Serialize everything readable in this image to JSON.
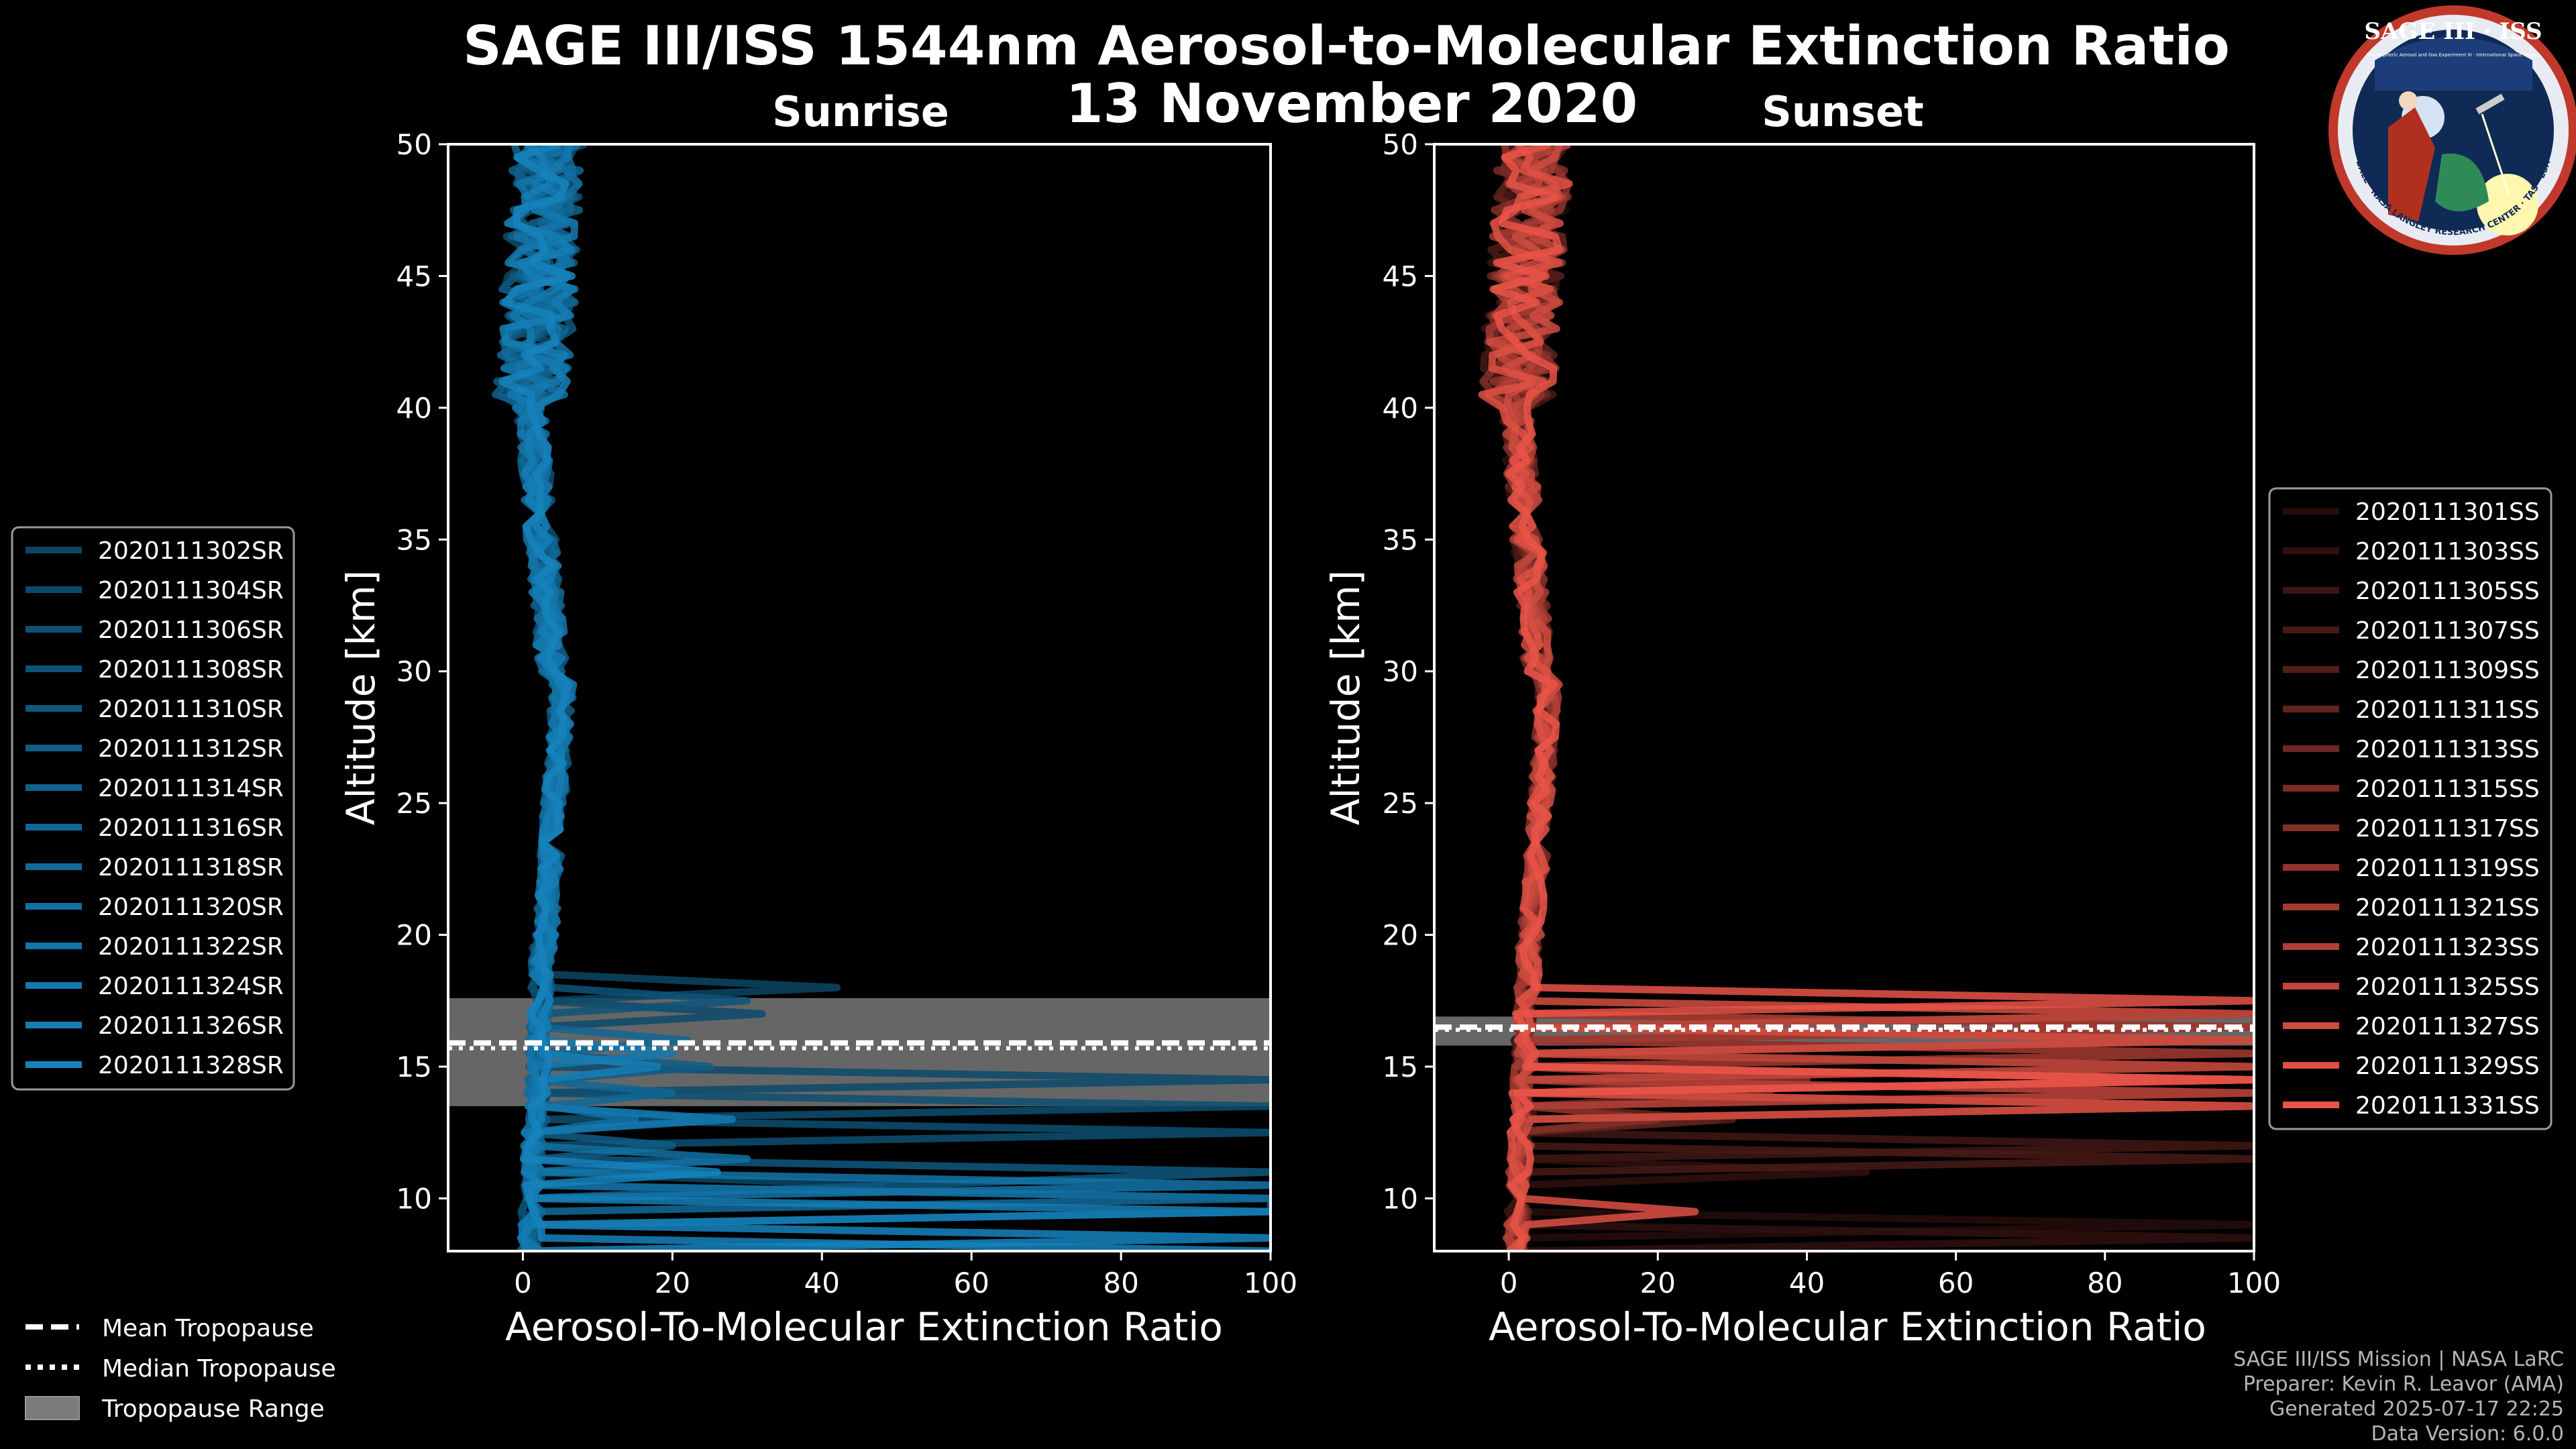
{
  "title_line1": "SAGE III/ISS 1544nm Aerosol-to-Molecular Extinction Ratio",
  "title_line2": "13 November 2020",
  "logo": {
    "top_text": "SAGE III · ISS",
    "sub_text": "Stratospheric Aerosol and Gas Experiment III · International Space Station",
    "ring_text": "BALL · NASA LANGLEY RESEARCH CENTER · TAS · ESA"
  },
  "chart_data": [
    {
      "type": "line",
      "title": "Sunrise",
      "xlabel": "Aerosol-To-Molecular Extinction Ratio",
      "ylabel": "Altitude [km]",
      "xlim": [
        -10,
        100
      ],
      "ylim": [
        8,
        50
      ],
      "xticks": [
        0,
        20,
        40,
        60,
        80,
        100
      ],
      "yticks": [
        10,
        15,
        20,
        25,
        30,
        35,
        40,
        45,
        50
      ],
      "base_color": "#1a9be0",
      "tropopause": {
        "mean_km": 15.9,
        "median_km": 15.9,
        "range_km": [
          13.5,
          17.6
        ]
      },
      "series": [
        {
          "name": "2020111302SR",
          "dark": 0.55,
          "spikes": [
            [
              18.2,
              42
            ],
            [
              10.7,
              48
            ],
            [
              9.6,
              2
            ]
          ]
        },
        {
          "name": "2020111304SR",
          "dark": 0.52,
          "spikes": [
            [
              16.8,
              32
            ],
            [
              14.3,
              100
            ]
          ]
        },
        {
          "name": "2020111306SR",
          "dark": 0.49,
          "spikes": [
            [
              13.6,
              100
            ],
            [
              12.4,
              100
            ]
          ]
        },
        {
          "name": "2020111308SR",
          "dark": 0.46,
          "spikes": [
            [
              17.4,
              30
            ],
            [
              13.1,
              24
            ]
          ]
        },
        {
          "name": "2020111310SR",
          "dark": 0.43,
          "spikes": [
            [
              11.0,
              100
            ],
            [
              10.4,
              50
            ]
          ]
        },
        {
          "name": "2020111312SR",
          "dark": 0.4,
          "spikes": [
            [
              15.2,
              25
            ],
            [
              12.0,
              20
            ]
          ]
        },
        {
          "name": "2020111314SR",
          "dark": 0.37,
          "spikes": [
            [
              10.2,
              100
            ],
            [
              9.3,
              100
            ]
          ]
        },
        {
          "name": "2020111316SR",
          "dark": 0.34,
          "spikes": [
            [
              16.1,
              22
            ],
            [
              14.0,
              20
            ]
          ]
        },
        {
          "name": "2020111318SR",
          "dark": 0.31,
          "spikes": [
            [
              9.9,
              100
            ],
            [
              8.7,
              100
            ]
          ]
        },
        {
          "name": "2020111320SR",
          "dark": 0.28,
          "spikes": [
            [
              11.6,
              30
            ],
            [
              13.0,
              15
            ]
          ]
        },
        {
          "name": "2020111322SR",
          "dark": 0.25,
          "spikes": [
            [
              10.5,
              100
            ],
            [
              8.4,
              100
            ]
          ]
        },
        {
          "name": "2020111324SR",
          "dark": 0.22,
          "spikes": [
            [
              12.8,
              28
            ],
            [
              15.6,
              20
            ]
          ]
        },
        {
          "name": "2020111326SR",
          "dark": 0.19,
          "spikes": [
            [
              9.5,
              100
            ],
            [
              14.8,
              18
            ]
          ]
        },
        {
          "name": "2020111328SR",
          "dark": 0.16,
          "spikes": [
            [
              8.2,
              100
            ],
            [
              10.9,
              26
            ]
          ]
        }
      ]
    },
    {
      "type": "line",
      "title": "Sunset",
      "xlabel": "Aerosol-To-Molecular Extinction Ratio",
      "ylabel": "Altitude [km]",
      "xlim": [
        -10,
        100
      ],
      "ylim": [
        8,
        50
      ],
      "xticks": [
        0,
        20,
        40,
        60,
        80,
        100
      ],
      "yticks": [
        10,
        15,
        20,
        25,
        30,
        35,
        40,
        45,
        50
      ],
      "base_color": "#f0574a",
      "tropopause": {
        "mean_km": 16.5,
        "median_km": 16.6,
        "range_km": [
          15.8,
          16.9
        ]
      },
      "series": [
        {
          "name": "2020111301SS",
          "dark": 0.85,
          "spikes": [
            [
              9.2,
              100
            ],
            [
              12.2,
              100
            ]
          ]
        },
        {
          "name": "2020111303SS",
          "dark": 0.8,
          "spikes": [
            [
              8.5,
              100
            ],
            [
              11.0,
              48
            ]
          ]
        },
        {
          "name": "2020111305SS",
          "dark": 0.75,
          "spikes": [
            [
              12.0,
              100
            ],
            [
              13.4,
              100
            ]
          ]
        },
        {
          "name": "2020111307SS",
          "dark": 0.7,
          "spikes": [
            [
              11.6,
              100
            ],
            [
              14.9,
              100
            ]
          ]
        },
        {
          "name": "2020111309SS",
          "dark": 0.65,
          "spikes": [
            [
              14.3,
              100
            ],
            [
              13.2,
              30
            ]
          ]
        },
        {
          "name": "2020111311SS",
          "dark": 0.6,
          "spikes": [
            [
              15.1,
              100
            ],
            [
              12.8,
              28
            ]
          ]
        },
        {
          "name": "2020111313SS",
          "dark": 0.55,
          "spikes": [
            [
              16.3,
              100
            ],
            [
              14.0,
              35
            ]
          ]
        },
        {
          "name": "2020111315SS",
          "dark": 0.5,
          "spikes": [
            [
              13.8,
              100
            ],
            [
              15.6,
              100
            ]
          ]
        },
        {
          "name": "2020111317SS",
          "dark": 0.45,
          "spikes": [
            [
              16.9,
              100
            ],
            [
              13.0,
              20
            ]
          ]
        },
        {
          "name": "2020111319SS",
          "dark": 0.4,
          "spikes": [
            [
              15.3,
              100
            ],
            [
              14.6,
              40
            ]
          ]
        },
        {
          "name": "2020111321SS",
          "dark": 0.32,
          "spikes": [
            [
              16.6,
              100
            ],
            [
              13.5,
              100
            ]
          ]
        },
        {
          "name": "2020111323SS",
          "dark": 0.26,
          "spikes": [
            [
              15.8,
              100
            ],
            [
              14.2,
              100
            ]
          ]
        },
        {
          "name": "2020111325SS",
          "dark": 0.2,
          "spikes": [
            [
              17.1,
              100
            ],
            [
              15.0,
              100
            ]
          ]
        },
        {
          "name": "2020111327SS",
          "dark": 0.14,
          "spikes": [
            [
              16.0,
              100
            ],
            [
              13.3,
              100
            ]
          ]
        },
        {
          "name": "2020111329SS",
          "dark": 0.08,
          "spikes": [
            [
              9.5,
              25
            ],
            [
              14.5,
              100
            ]
          ]
        },
        {
          "name": "2020111331SS",
          "dark": 0.03,
          "spikes": [
            [
              17.3,
              100
            ],
            [
              14.7,
              100
            ]
          ]
        }
      ]
    }
  ],
  "tropopause_legend": {
    "mean": "Mean Tropopause",
    "median": "Median Tropopause",
    "range": "Tropopause Range"
  },
  "credits": {
    "line1": "SAGE III/ISS Mission | NASA LaRC",
    "line2": "Preparer: Kevin R. Leavor (AMA)",
    "line3": "Generated 2025-07-17 22:25",
    "line4": "Data Version: 6.0.0"
  }
}
